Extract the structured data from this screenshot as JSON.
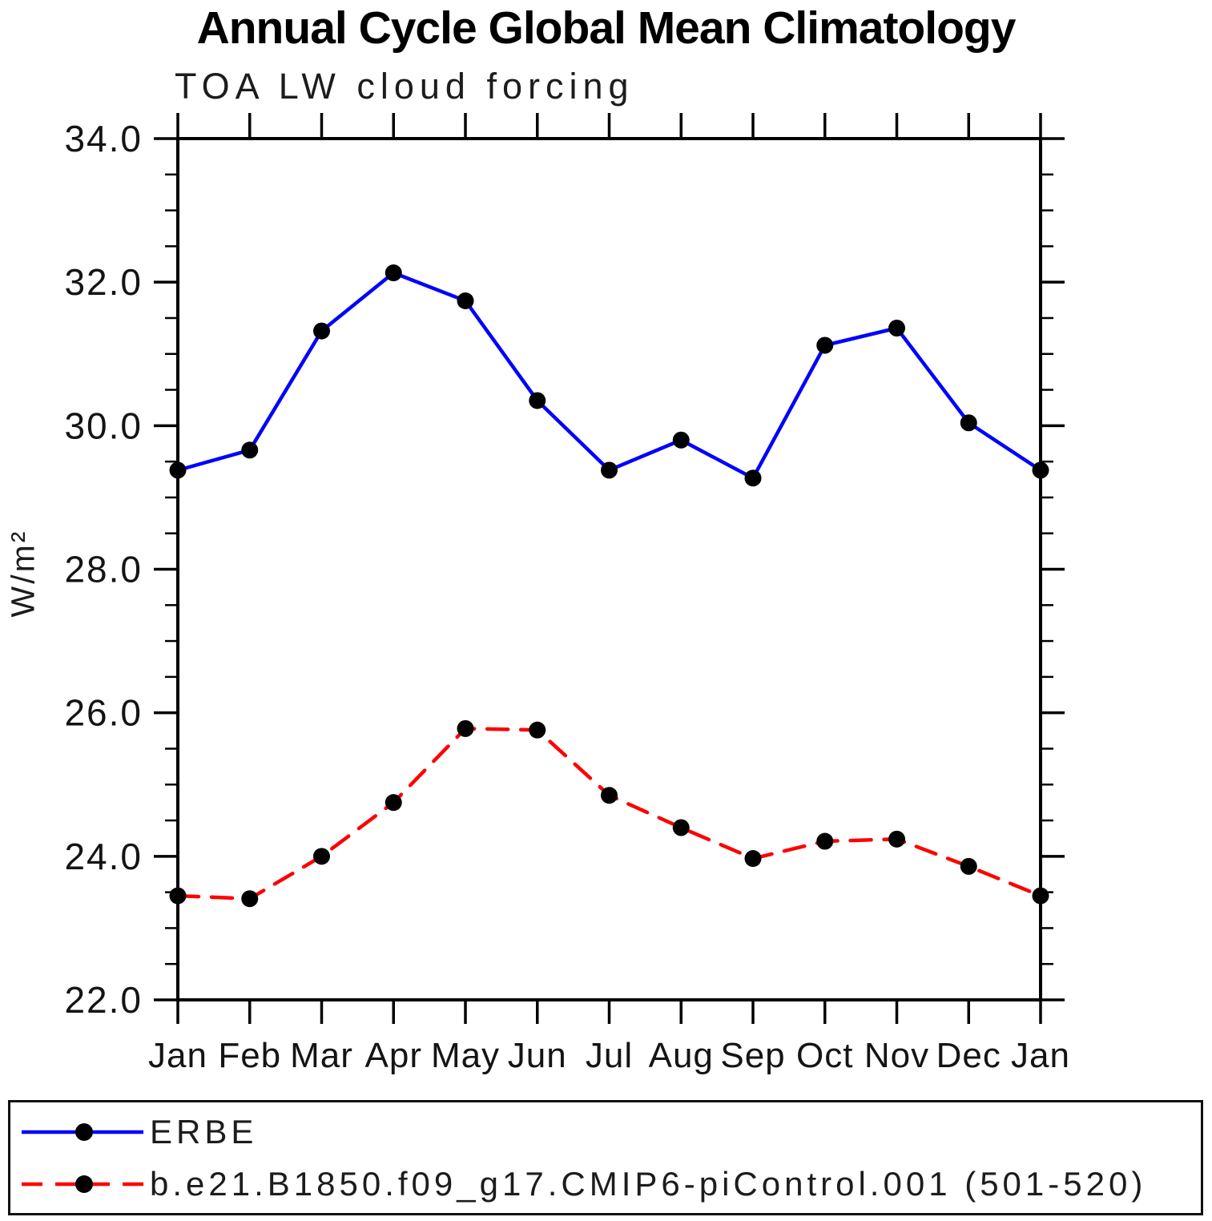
{
  "title": "Annual Cycle Global Mean Climatology",
  "subtitle": "TOA LW cloud forcing",
  "ylabel": "W/m²",
  "chart_data": {
    "type": "line",
    "x_tick_labels": [
      "Jan",
      "Feb",
      "Mar",
      "Apr",
      "May",
      "Jun",
      "Jul",
      "Aug",
      "Sep",
      "Oct",
      "Nov",
      "Dec",
      "Jan"
    ],
    "ylim": [
      22.0,
      34.0
    ],
    "y_ticks": [
      22.0,
      24.0,
      26.0,
      28.0,
      30.0,
      32.0,
      34.0
    ],
    "y_tick_labels": [
      "22.0",
      "24.0",
      "26.0",
      "28.0",
      "30.0",
      "32.0",
      "34.0"
    ],
    "y_minor_tick_step": 0.5,
    "grid": "off",
    "legend_position": "bottom-box",
    "marker_color": "#000000",
    "series": [
      {
        "name": "ERBE",
        "color": "#0000ff",
        "line_style": "solid",
        "marker": "filled-circle",
        "values": [
          29.38,
          29.66,
          31.32,
          32.13,
          31.74,
          30.35,
          29.38,
          29.8,
          29.27,
          31.12,
          31.36,
          30.04,
          29.38
        ]
      },
      {
        "name": "b.e21.B1850.f09_g17.CMIP6-piControl.001 (501-520)",
        "color": "#ff0000",
        "line_style": "dashed",
        "marker": "filled-circle",
        "values": [
          23.45,
          23.41,
          24.0,
          24.75,
          25.78,
          25.76,
          24.85,
          24.4,
          23.97,
          24.21,
          24.24,
          23.86,
          23.45
        ]
      }
    ]
  }
}
